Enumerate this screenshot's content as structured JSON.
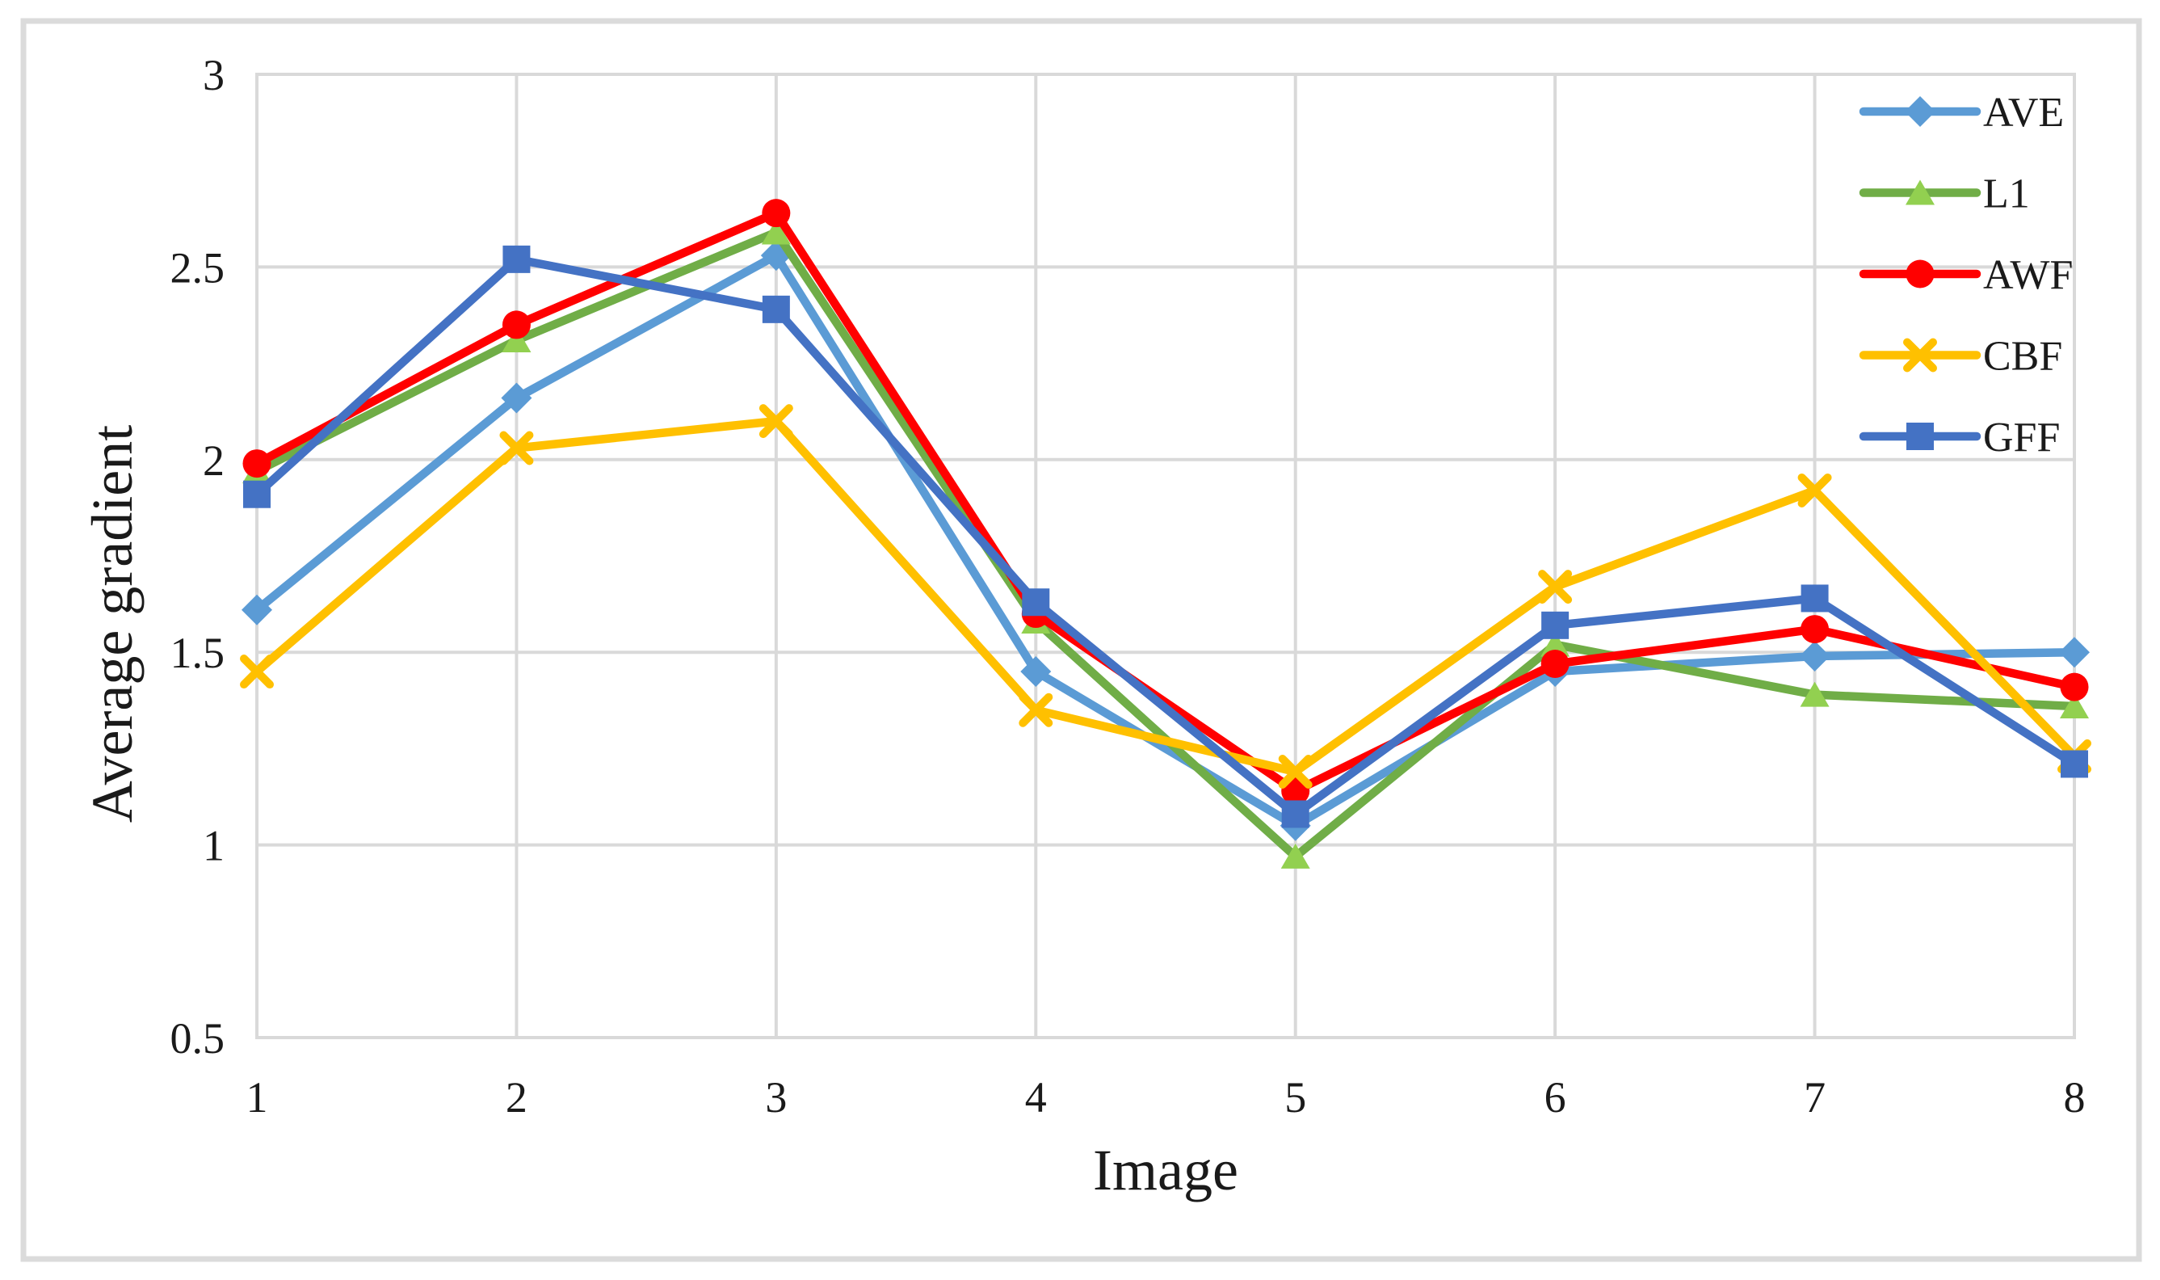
{
  "figure": {
    "background": "#FFFFFF",
    "outer_border_color": "#DBDBDB"
  },
  "chart_data": {
    "type": "line",
    "title": "",
    "xlabel": "Image",
    "ylabel": "Average gradient",
    "categories": [
      "1",
      "2",
      "3",
      "4",
      "5",
      "6",
      "7",
      "8"
    ],
    "xlim": [
      1,
      8
    ],
    "ylim": [
      0.5,
      3
    ],
    "yticks": [
      3,
      2.5,
      2,
      1.5,
      1,
      0.5
    ],
    "ytick_labels": [
      "3",
      "2.5",
      "2",
      "1.5",
      "1",
      "0.5"
    ],
    "grid": "both",
    "gridline_color": "#D9D9D9",
    "plot_border_color": "#D9D9D9",
    "text_color": "#1A1A1A",
    "legend_position": "top-right-overlay",
    "legend_entries": [
      "AVE",
      "L1",
      "AWF",
      "CBF",
      "GFF"
    ],
    "series": [
      {
        "name": "AVE",
        "color": "#5B9BD5",
        "marker": "diamond",
        "marker_color": "#5B9BD5",
        "values": [
          1.61,
          2.16,
          2.53,
          1.45,
          1.05,
          1.45,
          1.49,
          1.5
        ]
      },
      {
        "name": "L1",
        "color": "#70AD47",
        "marker": "triangle",
        "marker_color": "#92D050",
        "values": [
          1.97,
          2.31,
          2.59,
          1.58,
          0.97,
          1.52,
          1.39,
          1.36
        ]
      },
      {
        "name": "AWF",
        "color": "#FF0000",
        "marker": "circle",
        "marker_color": "#FF0000",
        "values": [
          1.99,
          2.35,
          2.64,
          1.6,
          1.14,
          1.47,
          1.56,
          1.41
        ]
      },
      {
        "name": "CBF",
        "color": "#FFC000",
        "marker": "x",
        "marker_color": "#FFC000",
        "values": [
          1.45,
          2.03,
          2.1,
          1.35,
          1.19,
          1.67,
          1.92,
          1.23
        ]
      },
      {
        "name": "GFF",
        "color": "#4472C4",
        "marker": "square",
        "marker_color": "#4472C4",
        "values": [
          1.91,
          2.52,
          2.39,
          1.63,
          1.08,
          1.57,
          1.64,
          1.21
        ]
      }
    ]
  }
}
